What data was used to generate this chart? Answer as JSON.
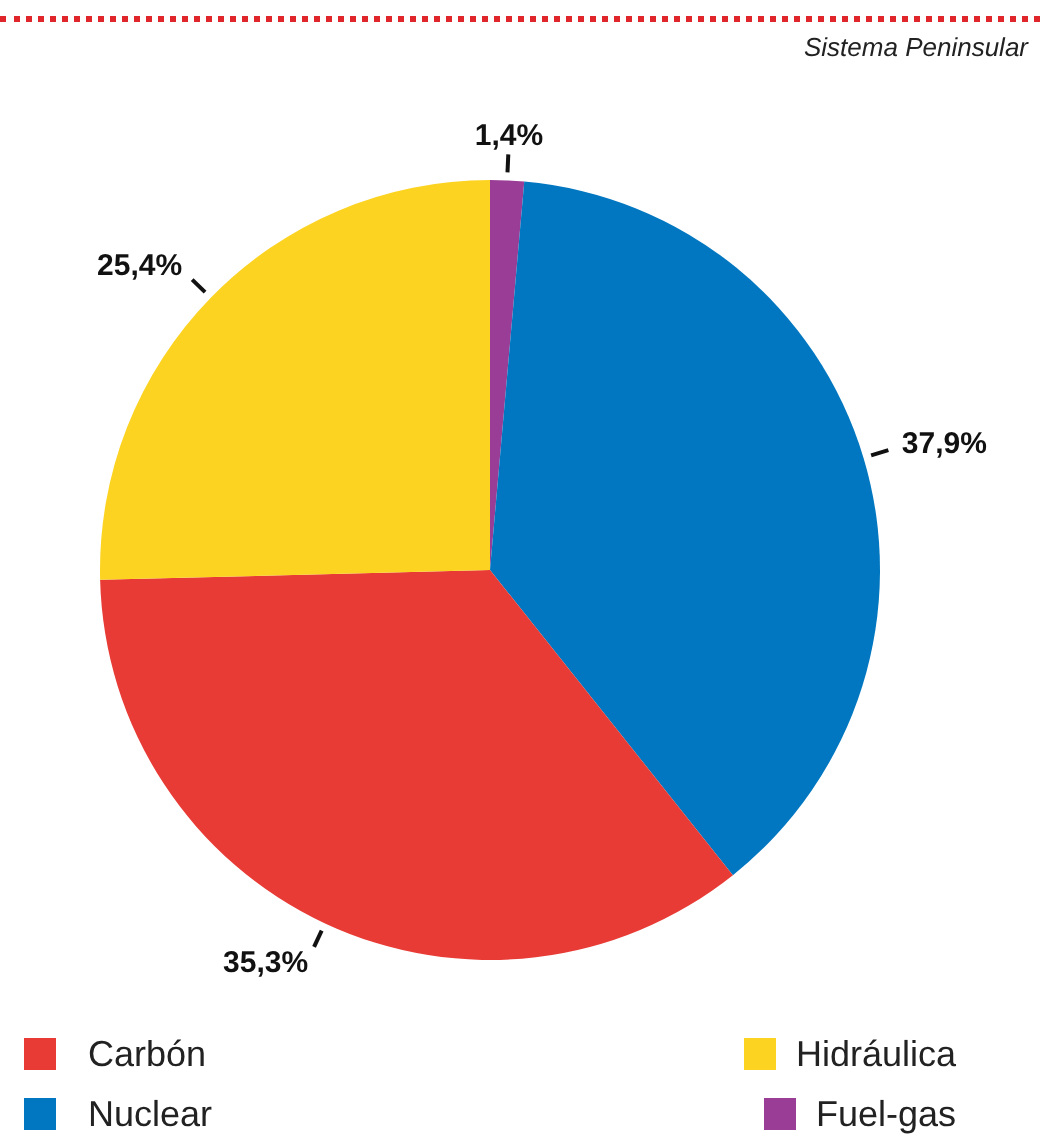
{
  "chart_data": {
    "type": "pie",
    "subtitle": "Sistema Peninsular",
    "categories": [
      "Fuel-gas",
      "Nuclear",
      "Carbón",
      "Hidráulica"
    ],
    "values": [
      1.4,
      37.9,
      35.3,
      25.4
    ],
    "colors": [
      "#9a3d96",
      "#0077c0",
      "#e83b35",
      "#fcd320"
    ],
    "value_labels": [
      "1,4%",
      "37,9%",
      "35,3%",
      "25,4%"
    ],
    "legend": "bottom"
  }
}
